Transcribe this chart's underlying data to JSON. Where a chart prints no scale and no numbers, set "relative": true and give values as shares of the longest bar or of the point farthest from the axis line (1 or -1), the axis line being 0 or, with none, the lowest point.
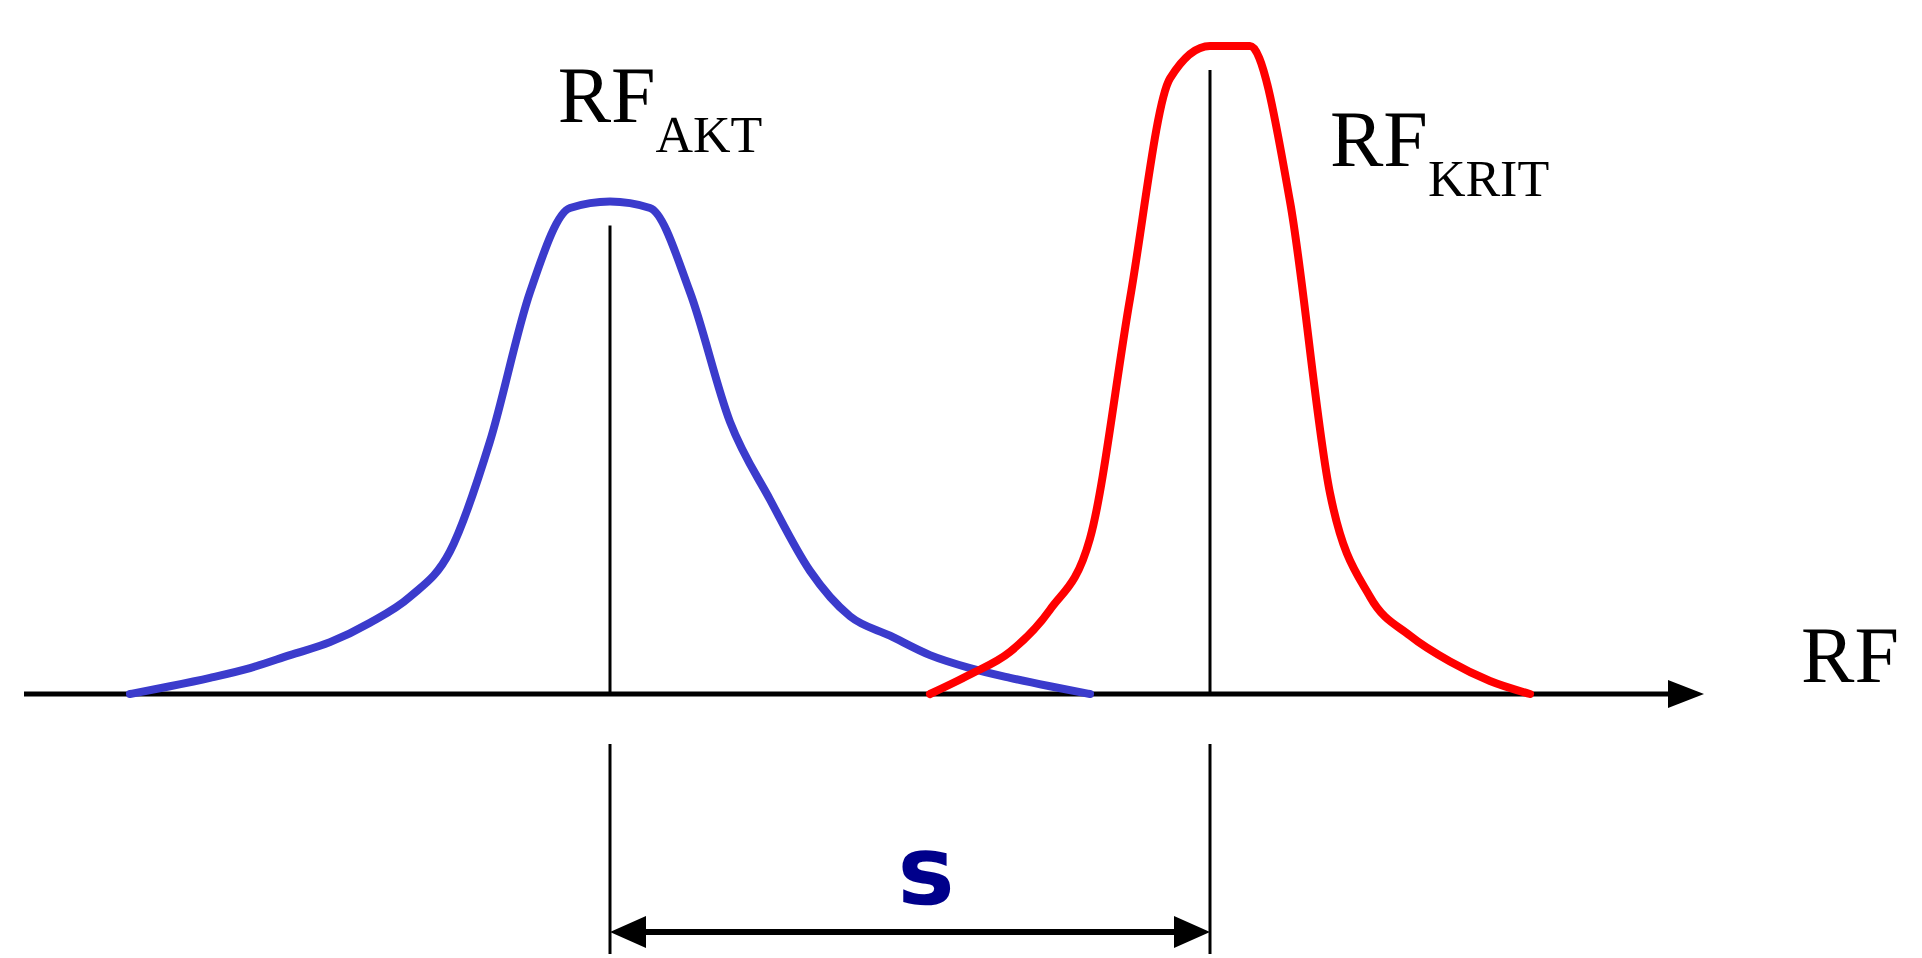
{
  "chart_data": {
    "type": "line",
    "relative": true,
    "xlabel": "RF",
    "categories": [
      null,
      null,
      null,
      null,
      null,
      null,
      null,
      null,
      null,
      null,
      null,
      null,
      null,
      null,
      null,
      null,
      null,
      null,
      null,
      null,
      null,
      null,
      null,
      null,
      null,
      null,
      null,
      null,
      null,
      null,
      null,
      null,
      null,
      null,
      null,
      null
    ],
    "series": [
      {
        "color": "#3b3bcc",
        "values": [
          0,
          0.012,
          0.025,
          0.04,
          0.06,
          0.08,
          0.11,
          0.15,
          0.22,
          0.39,
          0.62,
          0.75,
          0.76,
          0.75,
          0.62,
          0.42,
          0.3,
          0.19,
          0.12,
          0.09,
          0.06,
          0.04,
          0.025,
          0.012,
          0,
          null,
          null,
          null,
          null,
          null,
          null,
          null,
          null,
          null,
          null,
          null
        ]
      },
      {
        "color": "#ff0000",
        "values": [
          null,
          null,
          null,
          null,
          null,
          null,
          null,
          null,
          null,
          null,
          null,
          null,
          null,
          null,
          null,
          null,
          null,
          null,
          null,
          null,
          0,
          0.03,
          0.065,
          0.13,
          0.24,
          0.61,
          0.95,
          1,
          1,
          0.76,
          0.31,
          0.15,
          0.09,
          0.05,
          0.02,
          0
        ]
      }
    ],
    "annotations": [
      "RF$_{AKT}$",
      "RF$_{KRIT}$",
      "s"
    ]
  }
}
